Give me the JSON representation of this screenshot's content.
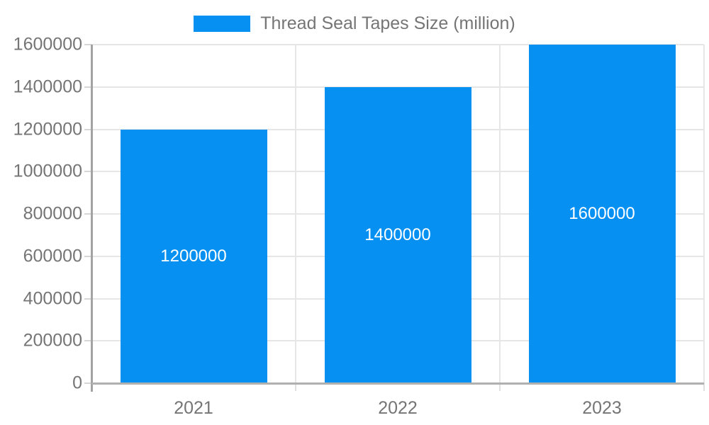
{
  "legend": {
    "label": "Thread Seal Tapes Size (million)"
  },
  "colors": {
    "bar": "#0590f2",
    "axis_text": "#757575",
    "gridline": "#e6e6e6",
    "axis_line": "#a3a3a3",
    "bar_label_text": "#ffffff"
  },
  "chart_data": {
    "type": "bar",
    "title": "Thread Seal Tapes Size (million)",
    "categories": [
      "2021",
      "2022",
      "2023"
    ],
    "values": [
      1200000,
      1400000,
      1600000
    ],
    "bar_labels": [
      "1200000",
      "1400000",
      "1600000"
    ],
    "ytick_labels": [
      "0",
      "200000",
      "400000",
      "600000",
      "800000",
      "1000000",
      "1200000",
      "1400000",
      "1600000"
    ],
    "ylim": [
      0,
      1600000
    ],
    "ytick_step": 200000,
    "xlabel": "",
    "ylabel": "",
    "grid": true,
    "legend_position": "top-center"
  }
}
